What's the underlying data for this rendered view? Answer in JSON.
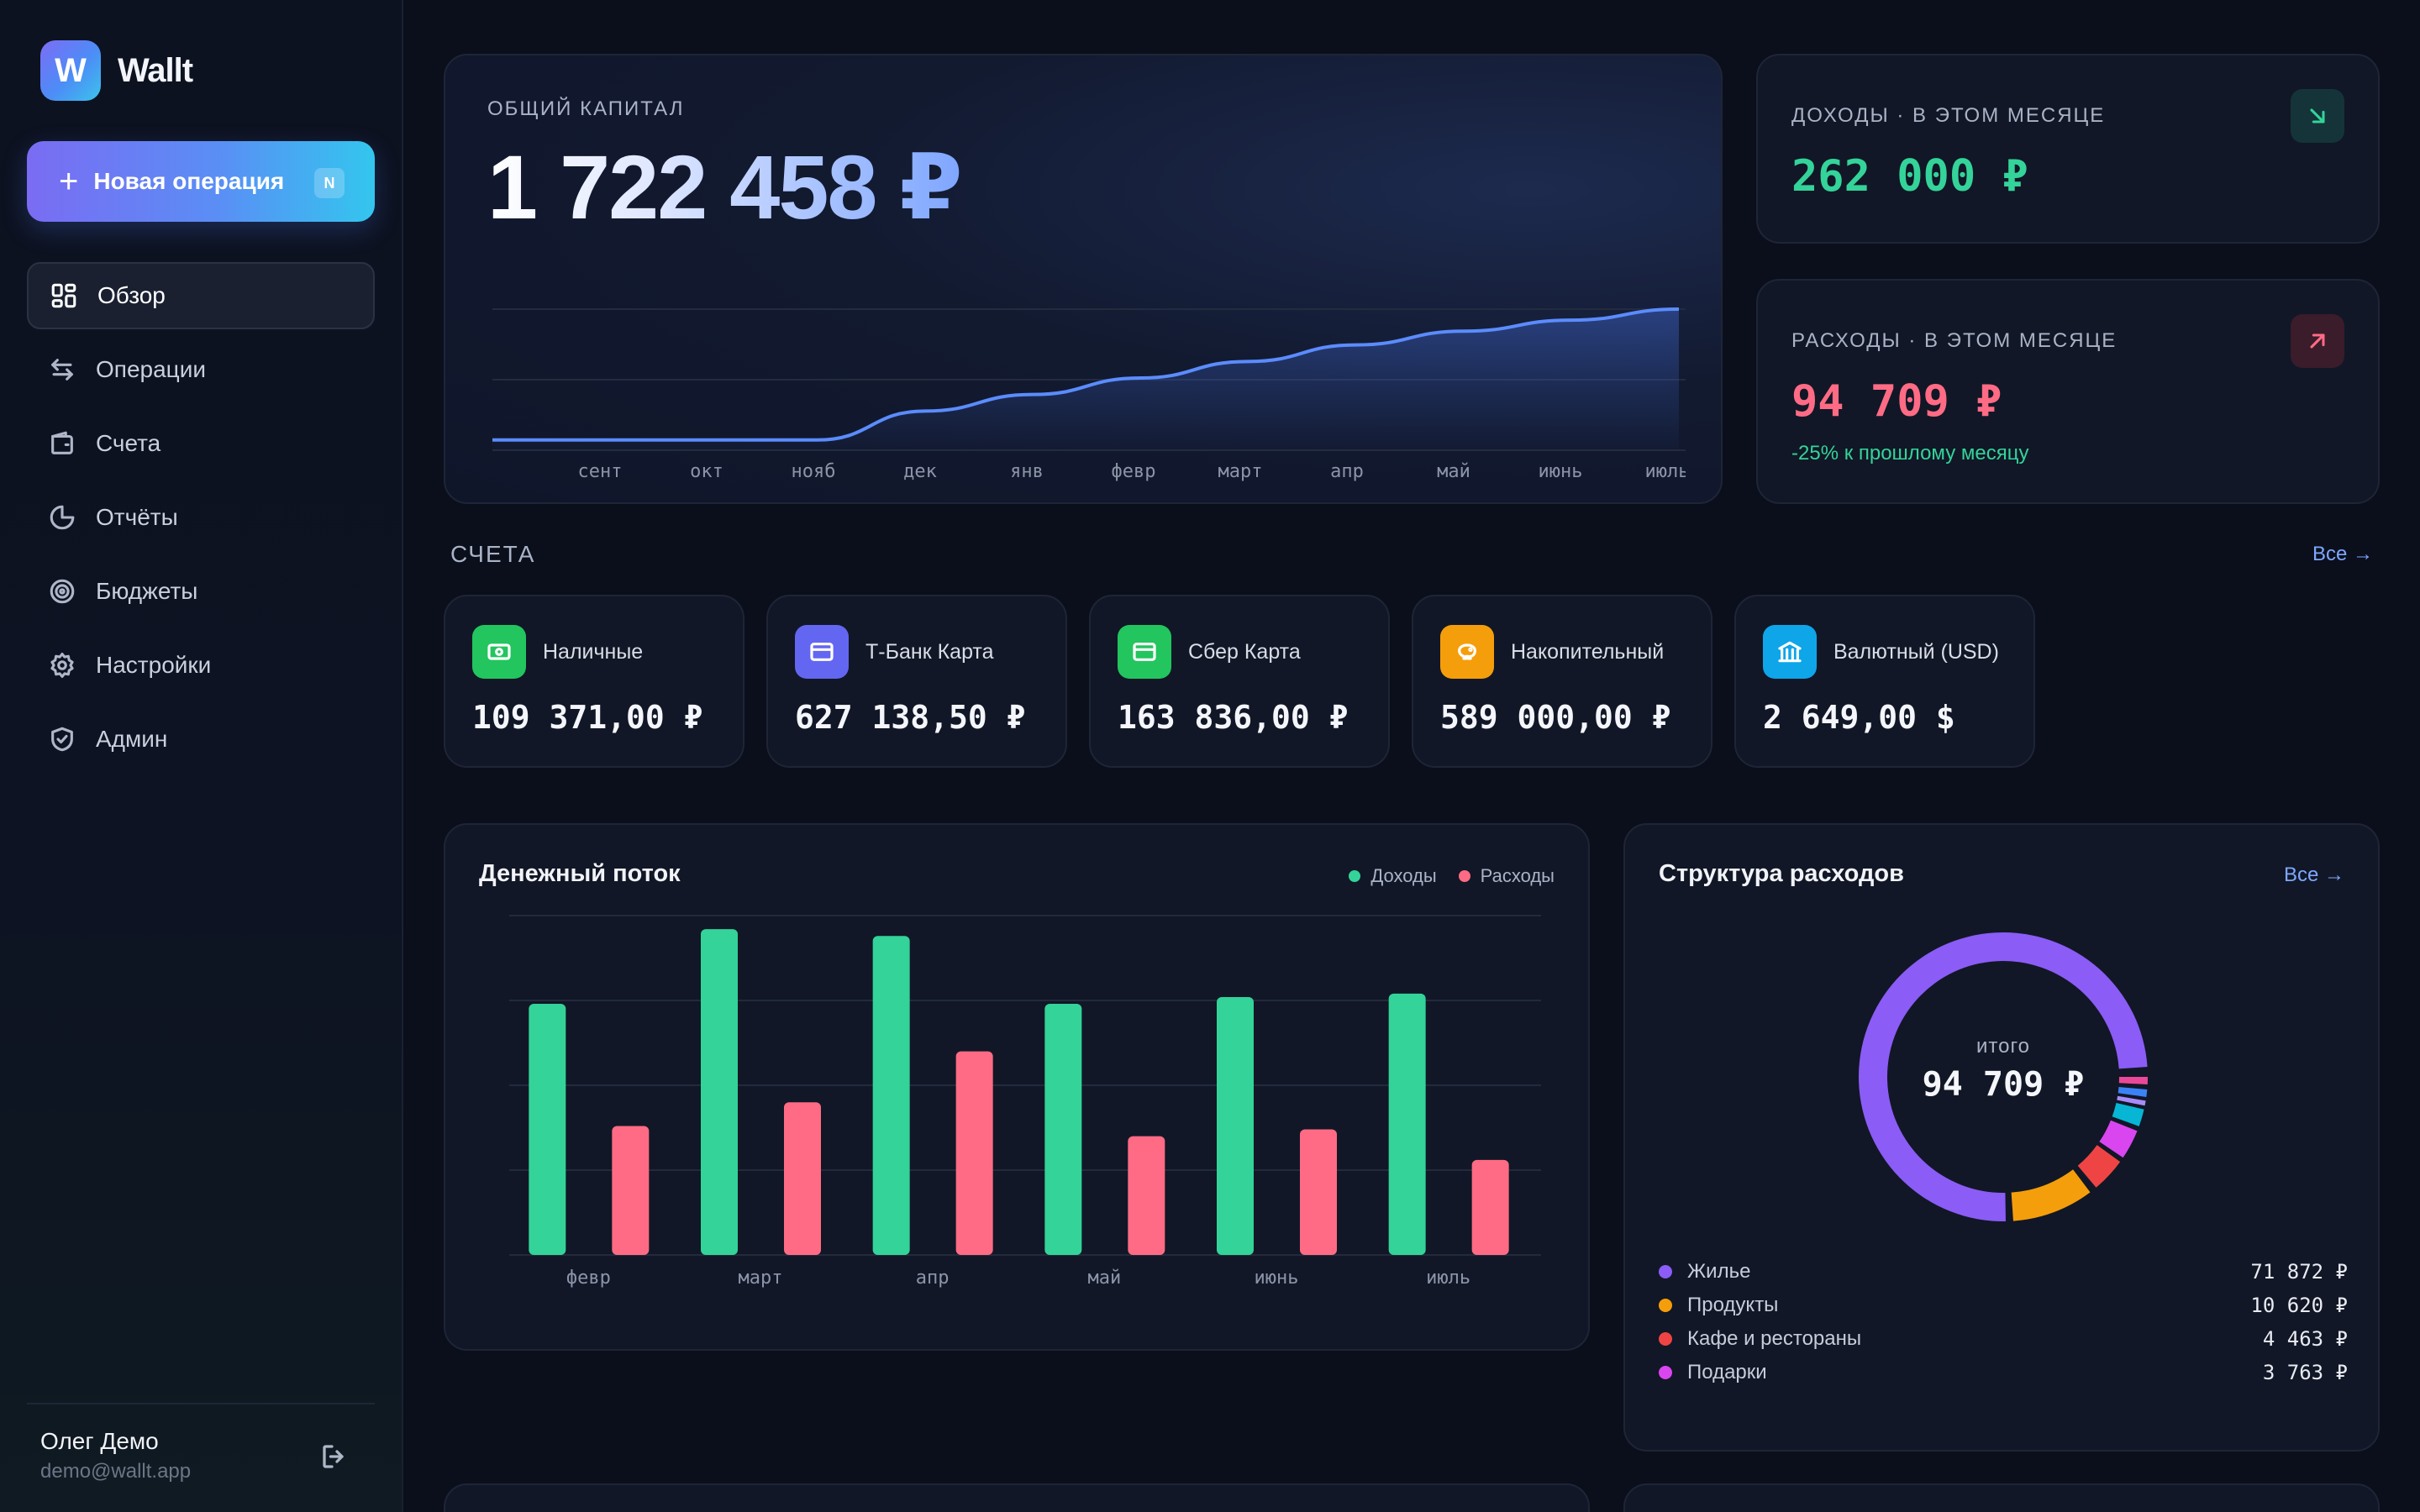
{
  "app": {
    "logo_letter": "W",
    "name": "Wallt"
  },
  "sidebar": {
    "new_operation_label": "Новая операция",
    "new_operation_shortcut": "N",
    "items": [
      {
        "label": "Обзор",
        "icon": "grid-icon",
        "active": true
      },
      {
        "label": "Операции",
        "icon": "arrows-swap-icon"
      },
      {
        "label": "Счета",
        "icon": "wallet-icon"
      },
      {
        "label": "Отчёты",
        "icon": "pie-chart-icon"
      },
      {
        "label": "Бюджеты",
        "icon": "target-icon"
      },
      {
        "label": "Настройки",
        "icon": "gear-icon"
      },
      {
        "label": "Админ",
        "icon": "shield-icon"
      }
    ],
    "user": {
      "name": "Олег Демо",
      "email": "demo@wallt.app"
    }
  },
  "capital": {
    "label": "ОБЩИЙ КАПИТАЛ",
    "value": "1 722 458 ₽",
    "chart_data": {
      "type": "area",
      "x": [
        "сент",
        "окт",
        "нояб",
        "дек",
        "янв",
        "февр",
        "март",
        "апр",
        "май",
        "июнь",
        "июль"
      ],
      "values": [
        0.05,
        0.05,
        0.05,
        0.26,
        0.38,
        0.5,
        0.62,
        0.74,
        0.84,
        0.92,
        1.0
      ]
    }
  },
  "income": {
    "label": "ДОХОДЫ · В ЭТОМ МЕСЯЦЕ",
    "value": "262 000 ₽",
    "icon": "arrow-down-right-icon"
  },
  "expense": {
    "label": "РАСХОДЫ · В ЭТОМ МЕСЯЦЕ",
    "value": "94 709 ₽",
    "sub": "-25% к прошлому месяцу",
    "icon": "arrow-up-right-icon"
  },
  "accounts": {
    "title": "СЧЕТА",
    "link": "Все →",
    "items": [
      {
        "name": "Наличные",
        "value": "109 371,00 ₽",
        "color": "#22c55e",
        "icon": "cash-icon"
      },
      {
        "name": "Т-Банк Карта",
        "value": "627 138,50 ₽",
        "color": "#6366f1",
        "icon": "card-icon"
      },
      {
        "name": "Сбер Карта",
        "value": "163 836,00 ₽",
        "color": "#22c55e",
        "icon": "card-icon"
      },
      {
        "name": "Накопительный",
        "value": "589 000,00 ₽",
        "color": "#f59e0b",
        "icon": "piggy-bank-icon"
      },
      {
        "name": "Валютный (USD)",
        "value": "2 649,00 $",
        "color": "#0ea5e9",
        "icon": "bank-icon"
      }
    ]
  },
  "cashflow": {
    "title": "Денежный поток",
    "legend_income": "Доходы",
    "legend_expense": "Расходы",
    "colors": {
      "income": "#34d399",
      "expense": "#ff6b84"
    },
    "chart_data": {
      "type": "bar",
      "categories": [
        "февр",
        "март",
        "апр",
        "май",
        "июнь",
        "июль"
      ],
      "series": [
        {
          "name": "Доходы",
          "values": [
            0.74,
            0.96,
            0.94,
            0.74,
            0.76,
            0.77
          ]
        },
        {
          "name": "Расходы",
          "values": [
            0.38,
            0.45,
            0.6,
            0.35,
            0.37,
            0.28
          ]
        }
      ]
    }
  },
  "structure": {
    "title": "Структура расходов",
    "link": "Все →",
    "total_label": "итого",
    "total_value": "94 709 ₽",
    "chart_data": {
      "type": "pie",
      "slices": [
        {
          "name": "Жилье",
          "value": 71872,
          "color": "#8b5cf6"
        },
        {
          "name": "Продукты",
          "value": 10620,
          "color": "#f59e0b"
        },
        {
          "name": "Кафе и рестораны",
          "value": 4463,
          "color": "#ef4444"
        },
        {
          "name": "Подарки",
          "value": 3763,
          "color": "#d946ef"
        },
        {
          "name": "",
          "value": 2000,
          "color": "#06b6d4"
        },
        {
          "name": "",
          "value": 800,
          "color": "#3b82f6"
        },
        {
          "name": "",
          "value": 600,
          "color": "#ec4899"
        },
        {
          "name": "",
          "value": 591,
          "color": "#a78bfa"
        }
      ]
    },
    "categories": [
      {
        "name": "Жилье",
        "amount": "71 872 ₽",
        "color": "#8b5cf6"
      },
      {
        "name": "Продукты",
        "amount": "10 620 ₽",
        "color": "#f59e0b"
      },
      {
        "name": "Кафе и рестораны",
        "amount": "4 463 ₽",
        "color": "#ef4444"
      },
      {
        "name": "Подарки",
        "amount": "3 763 ₽",
        "color": "#d946ef"
      }
    ]
  }
}
